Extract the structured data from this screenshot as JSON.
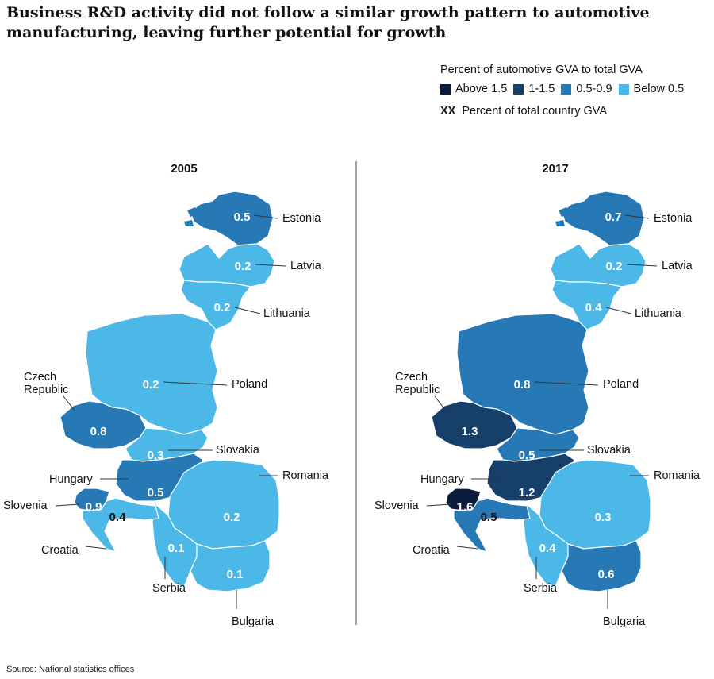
{
  "title": "Business R&D activity did not follow a similar growth pattern to automotive manufacturing, leaving further potential for growth",
  "legend": {
    "title": "Percent of automotive GVA to total GVA",
    "items": [
      {
        "label": "Above 1.5",
        "color": "#0c1c3c"
      },
      {
        "label": "1-1.5",
        "color": "#163f69"
      },
      {
        "label": "0.5-0.9",
        "color": "#2779b6"
      },
      {
        "label": "Below 0.5",
        "color": "#4cb8e8"
      }
    ],
    "xx_symbol": "XX",
    "xx_label": "Percent of total country GVA"
  },
  "maps": [
    {
      "year": "2005",
      "countries": {
        "estonia": {
          "name": "Estonia",
          "value": "0.5"
        },
        "latvia": {
          "name": "Latvia",
          "value": "0.2"
        },
        "lithuania": {
          "name": "Lithuania",
          "value": "0.2"
        },
        "poland": {
          "name": "Poland",
          "value": "0.2"
        },
        "czech": {
          "name": "Czech\nRepublic",
          "value": "0.8"
        },
        "slovakia": {
          "name": "Slovakia",
          "value": "0.3"
        },
        "hungary": {
          "name": "Hungary",
          "value": "0.5"
        },
        "slovenia": {
          "name": "Slovenia",
          "value": "0.9"
        },
        "croatia": {
          "name": "Croatia",
          "value": "0.4"
        },
        "romania": {
          "name": "Romania",
          "value": "0.2"
        },
        "serbia": {
          "name": "Serbia",
          "value": "0.1"
        },
        "bulgaria": {
          "name": "Bulgaria",
          "value": "0.1"
        }
      }
    },
    {
      "year": "2017",
      "countries": {
        "estonia": {
          "name": "Estonia",
          "value": "0.7"
        },
        "latvia": {
          "name": "Latvia",
          "value": "0.2"
        },
        "lithuania": {
          "name": "Lithuania",
          "value": "0.4"
        },
        "poland": {
          "name": "Poland",
          "value": "0.8"
        },
        "czech": {
          "name": "Czech\nRepublic",
          "value": "1.3"
        },
        "slovakia": {
          "name": "Slovakia",
          "value": "0.5"
        },
        "hungary": {
          "name": "Hungary",
          "value": "1.2"
        },
        "slovenia": {
          "name": "Slovenia",
          "value": "1.6"
        },
        "croatia": {
          "name": "Croatia",
          "value": "0.5"
        },
        "romania": {
          "name": "Romania",
          "value": "0.3"
        },
        "serbia": {
          "name": "Serbia",
          "value": "0.4"
        },
        "bulgaria": {
          "name": "Bulgaria",
          "value": "0.6"
        }
      }
    }
  ],
  "source": "Source: National statistics offices"
}
